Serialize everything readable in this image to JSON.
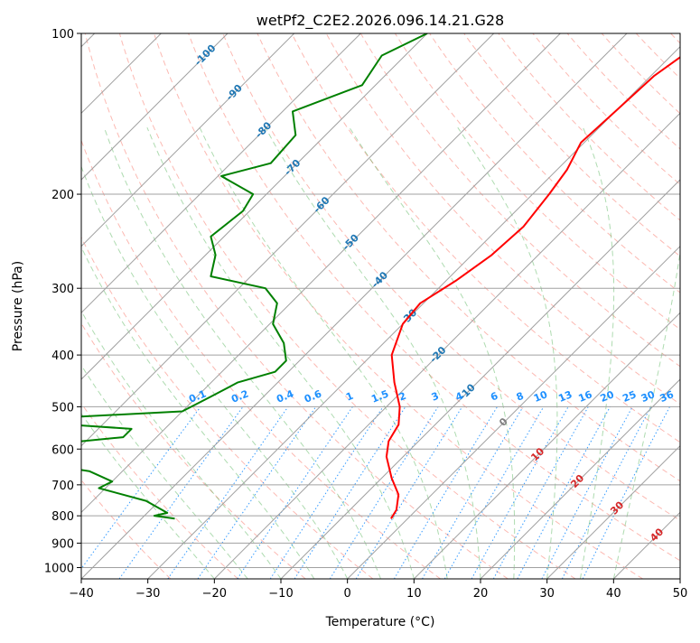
{
  "chart_data": {
    "type": "skew-t",
    "title": "wetPf2_C2E2.2026.096.14.21.G28",
    "xlabel": "Temperature (°C)",
    "ylabel": "Pressure (hPa)",
    "xlim": [
      -40,
      50
    ],
    "ylim": [
      1050,
      100
    ],
    "y_scale": "log",
    "x_ticks": [
      -40,
      -30,
      -20,
      -10,
      0,
      10,
      20,
      30,
      40,
      50
    ],
    "y_ticks": [
      100,
      200,
      300,
      400,
      500,
      600,
      700,
      800,
      900,
      1000
    ],
    "grid": true,
    "colors": {
      "temperature": "#ff0000",
      "dewpoint": "#008000",
      "isotherm": "#a0a0a0",
      "isobar": "#a0a0a0",
      "dry_adiabat": "#fa8072",
      "moist_adiabat": "#4caf50",
      "mixing_ratio": "#1e90ff",
      "isotherm_label": "#1f77b4",
      "warm_label": "#d62728",
      "zero_label": "#808080"
    },
    "series": [
      {
        "key": "temperature",
        "points": [
          {
            "p": 100,
            "t": -27.0
          },
          {
            "p": 120,
            "t": -29.5
          },
          {
            "p": 140,
            "t": -30.0
          },
          {
            "p": 160,
            "t": -30.5
          },
          {
            "p": 180,
            "t": -28.5
          },
          {
            "p": 200,
            "t": -27.5
          },
          {
            "p": 230,
            "t": -26.5
          },
          {
            "p": 260,
            "t": -27.0
          },
          {
            "p": 290,
            "t": -28.5
          },
          {
            "p": 320,
            "t": -30.5
          },
          {
            "p": 350,
            "t": -30.0
          },
          {
            "p": 400,
            "t": -27.0
          },
          {
            "p": 450,
            "t": -22.5
          },
          {
            "p": 500,
            "t": -18.0
          },
          {
            "p": 540,
            "t": -15.5
          },
          {
            "p": 580,
            "t": -14.5
          },
          {
            "p": 620,
            "t": -12.5
          },
          {
            "p": 680,
            "t": -8.5
          },
          {
            "p": 730,
            "t": -5.0
          },
          {
            "p": 780,
            "t": -3.0
          },
          {
            "p": 810,
            "t": -2.5
          }
        ]
      },
      {
        "key": "dewpoint",
        "points": [
          {
            "p": 100,
            "t": -70.0
          },
          {
            "p": 110,
            "t": -73.5
          },
          {
            "p": 125,
            "t": -72.0
          },
          {
            "p": 140,
            "t": -78.5
          },
          {
            "p": 155,
            "t": -74.5
          },
          {
            "p": 175,
            "t": -74.0
          },
          {
            "p": 185,
            "t": -79.5
          },
          {
            "p": 200,
            "t": -72.0
          },
          {
            "p": 215,
            "t": -71.0
          },
          {
            "p": 240,
            "t": -72.0
          },
          {
            "p": 260,
            "t": -68.5
          },
          {
            "p": 285,
            "t": -66.0
          },
          {
            "p": 300,
            "t": -56.0
          },
          {
            "p": 320,
            "t": -52.0
          },
          {
            "p": 350,
            "t": -49.5
          },
          {
            "p": 380,
            "t": -45.0
          },
          {
            "p": 410,
            "t": -42.0
          },
          {
            "p": 430,
            "t": -42.0
          },
          {
            "p": 450,
            "t": -46.0
          },
          {
            "p": 480,
            "t": -48.0
          },
          {
            "p": 510,
            "t": -50.0
          },
          {
            "p": 530,
            "t": -75.0
          },
          {
            "p": 550,
            "t": -55.0
          },
          {
            "p": 570,
            "t": -55.0
          },
          {
            "p": 590,
            "t": -66.0
          },
          {
            "p": 610,
            "t": -61.0
          },
          {
            "p": 630,
            "t": -67.0
          },
          {
            "p": 660,
            "t": -55.0
          },
          {
            "p": 690,
            "t": -50.0
          },
          {
            "p": 710,
            "t": -51.0
          },
          {
            "p": 750,
            "t": -42.0
          },
          {
            "p": 790,
            "t": -37.0
          },
          {
            "p": 800,
            "t": -38.5
          },
          {
            "p": 810,
            "t": -35.0
          }
        ]
      }
    ],
    "isotherm_labels": [
      "-100",
      "-90",
      "-80",
      "-70",
      "-60",
      "-50",
      "-40",
      "-30",
      "-20",
      "-10",
      "0",
      "10",
      "20",
      "30",
      "40"
    ],
    "isotherm_label_values": [
      -100,
      -90,
      -80,
      -70,
      -60,
      -50,
      -40,
      -30,
      -20,
      -10,
      0,
      10,
      20,
      30,
      40
    ],
    "mixing_ratio_labels": [
      "0.1",
      "0.2",
      "0.4",
      "0.6",
      "1",
      "1.5",
      "2",
      "3",
      "4",
      "6",
      "8",
      "10",
      "13",
      "16",
      "20",
      "25",
      "30",
      "36"
    ],
    "mixing_ratio_values": [
      0.1,
      0.2,
      0.4,
      0.6,
      1,
      1.5,
      2,
      3,
      4,
      6,
      8,
      10,
      13,
      16,
      20,
      25,
      30,
      36
    ]
  }
}
